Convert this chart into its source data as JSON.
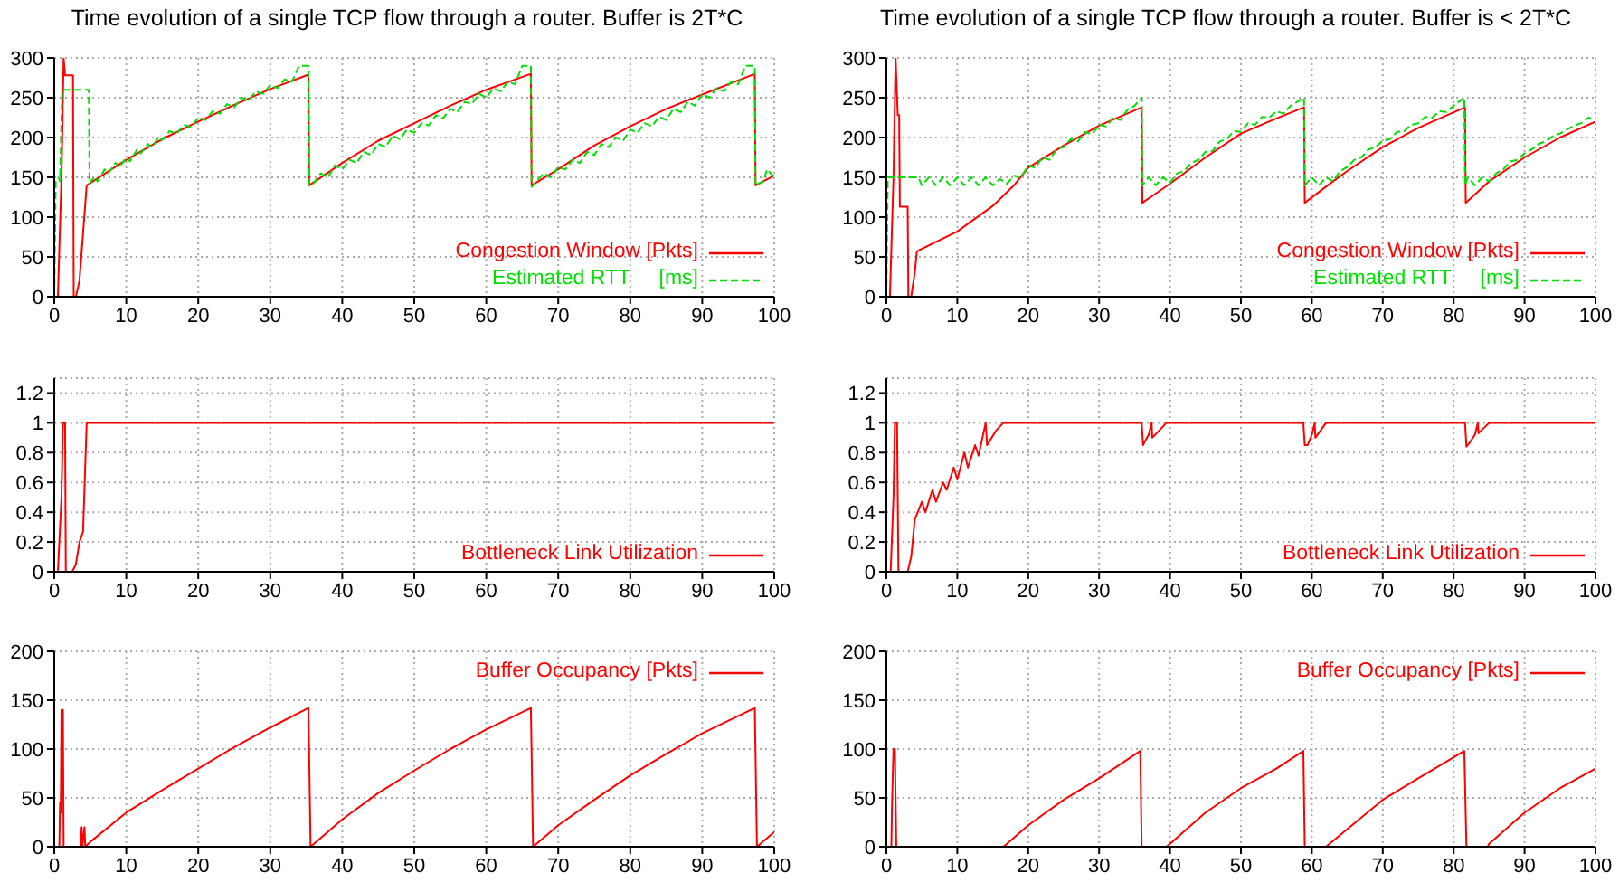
{
  "chart_data": [
    {
      "type": "line",
      "title": "Time evolution of a single TCP flow through a router. Buffer is 2T*C",
      "xlim": [
        0,
        100
      ],
      "xticks": [
        0,
        10,
        20,
        30,
        40,
        50,
        60,
        70,
        80,
        90,
        100
      ],
      "ylim": [
        0,
        300
      ],
      "yticks": [
        0,
        50,
        100,
        150,
        200,
        250,
        300
      ],
      "grid": true,
      "legend": "bottom right",
      "series": [
        {
          "name": "Congestion Window [Pkts]",
          "color": "#ff0000",
          "line_style": "solid",
          "x": [
            0,
            0.5,
            1,
            1.3,
            1.5,
            2.6,
            2.7,
            3,
            3.5,
            4,
            4.5,
            10,
            15,
            20,
            25,
            30,
            35.3,
            35.4,
            40,
            45,
            50,
            55,
            60,
            66.2,
            66.3,
            70,
            75,
            80,
            85,
            90,
            97.3,
            97.4,
            100
          ],
          "values": [
            0,
            0,
            150,
            300,
            278,
            278,
            0,
            0,
            20,
            80,
            140,
            172,
            198,
            220,
            241,
            261,
            279,
            140,
            168,
            196,
            218,
            240,
            260,
            280,
            140,
            160,
            190,
            214,
            236,
            254,
            280,
            140,
            152
          ]
        },
        {
          "name": "Estimated RTT     [ms]",
          "color": "#00e000",
          "line_style": "dashed",
          "x": [
            0,
            0.2,
            0.6,
            0.8,
            1.1,
            4.8,
            4.9,
            5.5,
            6,
            7,
            7.5,
            8.5,
            9,
            10,
            10.5,
            11.5,
            12,
            13,
            13.5,
            14.5,
            15,
            16,
            17,
            18,
            19,
            20,
            21,
            22,
            23,
            24,
            25,
            26,
            27,
            28,
            29,
            30,
            31,
            32,
            33,
            34,
            35.3,
            35.4,
            36,
            37,
            38,
            39,
            40,
            41,
            42,
            43,
            44,
            45,
            46,
            47,
            48,
            49,
            50,
            51,
            52,
            53,
            54,
            55,
            56,
            57,
            58,
            59,
            60,
            61,
            62,
            63,
            64,
            65,
            66.2,
            66.3,
            67,
            68,
            69,
            70,
            71,
            72,
            73,
            74,
            75,
            76,
            77,
            78,
            79,
            80,
            81,
            82,
            83,
            84,
            85,
            86,
            87,
            88,
            89,
            90,
            91,
            92,
            93,
            94,
            95,
            96,
            97.3,
            97.4,
            98.5,
            99,
            100
          ],
          "values": [
            0,
            145,
            150,
            145,
            260,
            260,
            142,
            150,
            145,
            160,
            155,
            168,
            162,
            175,
            170,
            185,
            180,
            192,
            188,
            200,
            197,
            208,
            205,
            216,
            213,
            225,
            222,
            233,
            230,
            242,
            238,
            250,
            247,
            258,
            255,
            266,
            262,
            273,
            270,
            290,
            290,
            140,
            142,
            155,
            150,
            165,
            160,
            172,
            168,
            182,
            178,
            192,
            188,
            202,
            198,
            210,
            206,
            218,
            215,
            228,
            224,
            236,
            232,
            245,
            242,
            255,
            250,
            262,
            258,
            270,
            267,
            290,
            290,
            138,
            145,
            155,
            150,
            163,
            160,
            172,
            168,
            182,
            178,
            192,
            188,
            200,
            196,
            210,
            206,
            218,
            214,
            226,
            222,
            236,
            232,
            245,
            240,
            255,
            250,
            262,
            258,
            270,
            267,
            290,
            290,
            140,
            145,
            160,
            150
          ]
        }
      ]
    },
    {
      "type": "line",
      "title": "Time evolution of a single TCP flow through a router. Buffer is < 2T*C",
      "xlim": [
        0,
        100
      ],
      "xticks": [
        0,
        10,
        20,
        30,
        40,
        50,
        60,
        70,
        80,
        90,
        100
      ],
      "ylim": [
        0,
        300
      ],
      "yticks": [
        0,
        50,
        100,
        150,
        200,
        250,
        300
      ],
      "grid": true,
      "legend": "bottom right",
      "series": [
        {
          "name": "Congestion Window [Pkts]",
          "color": "#ff0000",
          "line_style": "solid",
          "x": [
            0,
            0.5,
            1,
            1.3,
            1.6,
            1.8,
            1.9,
            3,
            3.1,
            3.5,
            4,
            4.3,
            10,
            15,
            18,
            20,
            25,
            30,
            36,
            36.1,
            40,
            45,
            50,
            55,
            58.9,
            59,
            63,
            65,
            70,
            75,
            81.6,
            81.7,
            85,
            90,
            95,
            100
          ],
          "values": [
            0,
            0,
            150,
            300,
            228,
            228,
            113,
            113,
            0,
            0,
            30,
            57,
            82,
            114,
            140,
            162,
            190,
            215,
            238,
            118,
            142,
            175,
            205,
            224,
            238,
            118,
            145,
            158,
            188,
            212,
            238,
            118,
            145,
            175,
            200,
            220
          ]
        },
        {
          "name": "Estimated RTT     [ms]",
          "color": "#00e000",
          "line_style": "dashed",
          "x": [
            0,
            0.2,
            4.5,
            5,
            6,
            7,
            8,
            9,
            10,
            11,
            12,
            13,
            14,
            15,
            16,
            17,
            18,
            19,
            20,
            21,
            22,
            23,
            24,
            25,
            26,
            27,
            28,
            29,
            30,
            31,
            32,
            33,
            34,
            35,
            36,
            36.1,
            37,
            38,
            39,
            40,
            41,
            42,
            43,
            44,
            45,
            46,
            47,
            48,
            49,
            50,
            51,
            52,
            53,
            54,
            55,
            56,
            57,
            58,
            58.9,
            59,
            60,
            61,
            62,
            63,
            64,
            65,
            66,
            67,
            68,
            69,
            70,
            71,
            72,
            73,
            74,
            75,
            76,
            77,
            78,
            79,
            80,
            81.5,
            81.6,
            82,
            83,
            84,
            85,
            86,
            87,
            88,
            89,
            90,
            91,
            92,
            93,
            94,
            95,
            96,
            97,
            98,
            99,
            100
          ],
          "values": [
            0,
            150,
            150,
            140,
            150,
            140,
            150,
            140,
            150,
            140,
            150,
            140,
            150,
            140,
            148,
            142,
            152,
            150,
            165,
            162,
            175,
            172,
            185,
            188,
            198,
            195,
            207,
            204,
            216,
            214,
            225,
            222,
            235,
            240,
            250,
            140,
            150,
            140,
            150,
            143,
            155,
            158,
            168,
            172,
            182,
            183,
            195,
            198,
            208,
            207,
            218,
            216,
            226,
            225,
            233,
            230,
            240,
            245,
            250,
            140,
            150,
            140,
            150,
            145,
            158,
            163,
            172,
            175,
            185,
            188,
            196,
            198,
            207,
            208,
            216,
            218,
            226,
            225,
            233,
            232,
            240,
            250,
            140,
            150,
            140,
            150,
            145,
            155,
            160,
            170,
            172,
            180,
            185,
            192,
            195,
            202,
            205,
            210,
            215,
            218,
            225,
            222
          ]
        }
      ]
    },
    {
      "type": "line",
      "xlim": [
        0,
        100
      ],
      "xticks": [
        0,
        10,
        20,
        30,
        40,
        50,
        60,
        70,
        80,
        90,
        100
      ],
      "ylim": [
        0,
        1.3
      ],
      "yticks": [
        0,
        0.2,
        0.4,
        0.6,
        0.8,
        1,
        1.2
      ],
      "grid": true,
      "legend": "bottom right",
      "series": [
        {
          "name": "Bottleneck Link Utilization",
          "color": "#ff0000",
          "line_style": "solid",
          "x": [
            0,
            0.5,
            1,
            1.2,
            1.5,
            1.6,
            2.5,
            3,
            3.5,
            4,
            4.5,
            100
          ],
          "values": [
            0,
            0,
            0.5,
            1,
            1,
            0,
            0,
            0.05,
            0.2,
            0.27,
            1,
            1
          ]
        }
      ]
    },
    {
      "type": "line",
      "xlim": [
        0,
        100
      ],
      "xticks": [
        0,
        10,
        20,
        30,
        40,
        50,
        60,
        70,
        80,
        90,
        100
      ],
      "ylim": [
        0,
        1.3
      ],
      "yticks": [
        0,
        0.2,
        0.4,
        0.6,
        0.8,
        1,
        1.2
      ],
      "grid": true,
      "legend": "bottom right",
      "series": [
        {
          "name": "Bottleneck Link Utilization",
          "color": "#ff0000",
          "line_style": "solid",
          "x": [
            0,
            0.6,
            1,
            1.2,
            1.5,
            1.7,
            3,
            3.5,
            4,
            5,
            5.5,
            6.5,
            7,
            8,
            8.5,
            9.5,
            10,
            11,
            11.5,
            12.5,
            13,
            14,
            14.2,
            15.5,
            16.5,
            36,
            36.2,
            36.5,
            37,
            37.4,
            37.5,
            39.5,
            58.8,
            59,
            59.4,
            60,
            60.4,
            60.5,
            62,
            81.6,
            81.8,
            82.3,
            83,
            83.4,
            83.5,
            85,
            100
          ],
          "values": [
            0,
            0,
            0.5,
            1,
            1,
            0,
            0,
            0.1,
            0.35,
            0.47,
            0.4,
            0.55,
            0.47,
            0.6,
            0.55,
            0.7,
            0.62,
            0.8,
            0.7,
            0.85,
            0.78,
            1,
            0.85,
            0.95,
            1,
            1,
            0.85,
            0.88,
            0.92,
            1,
            0.9,
            1,
            1,
            0.85,
            0.85,
            0.92,
            1,
            0.9,
            1,
            1,
            0.84,
            0.87,
            0.92,
            1,
            0.93,
            1,
            1
          ]
        }
      ]
    },
    {
      "type": "line",
      "xlim": [
        0,
        100
      ],
      "xticks": [
        0,
        10,
        20,
        30,
        40,
        50,
        60,
        70,
        80,
        90,
        100
      ],
      "ylim": [
        0,
        200
      ],
      "yticks": [
        0,
        50,
        100,
        150,
        200
      ],
      "grid": true,
      "legend": "top right",
      "series": [
        {
          "name": "Buffer Occupancy [Pkts]",
          "color": "#ff0000",
          "line_style": "solid",
          "x": [
            0,
            0.7,
            0.8,
            0.9,
            1,
            1.2,
            1.3,
            3.7,
            3.8,
            3.9,
            4.2,
            4.3,
            5,
            10,
            15,
            20,
            25,
            30,
            35.3,
            35.6,
            40,
            45,
            50,
            55,
            60,
            66.2,
            66.5,
            70,
            75,
            80,
            85,
            90,
            97.3,
            97.6,
            100
          ],
          "values": [
            0,
            0,
            45,
            35,
            140,
            140,
            0,
            0,
            20,
            0,
            20,
            0,
            5,
            35,
            58,
            80,
            102,
            122,
            142,
            0,
            28,
            55,
            78,
            100,
            120,
            142,
            0,
            22,
            48,
            73,
            95,
            116,
            142,
            0,
            15
          ]
        }
      ]
    },
    {
      "type": "line",
      "xlim": [
        0,
        100
      ],
      "xticks": [
        0,
        10,
        20,
        30,
        40,
        50,
        60,
        70,
        80,
        90,
        100
      ],
      "ylim": [
        0,
        200
      ],
      "yticks": [
        0,
        50,
        100,
        150,
        200
      ],
      "grid": true,
      "legend": "top right",
      "series": [
        {
          "name": "Buffer Occupancy [Pkts]",
          "color": "#ff0000",
          "line_style": "solid",
          "x": [
            0,
            0.7,
            0.8,
            1,
            1.2,
            1.4,
            16.5,
            17,
            20,
            25,
            30,
            35.8,
            36,
            39.5,
            40,
            45,
            50,
            55,
            58.8,
            59,
            62,
            62.5,
            65,
            70,
            75,
            81.5,
            81.8,
            84.8,
            85,
            90,
            95,
            100
          ],
          "values": [
            0,
            0,
            45,
            100,
            100,
            0,
            0,
            3,
            22,
            48,
            70,
            98,
            0,
            0,
            3,
            35,
            60,
            80,
            98,
            0,
            0,
            3,
            18,
            48,
            70,
            98,
            0,
            0,
            3,
            35,
            60,
            80
          ]
        }
      ]
    }
  ]
}
